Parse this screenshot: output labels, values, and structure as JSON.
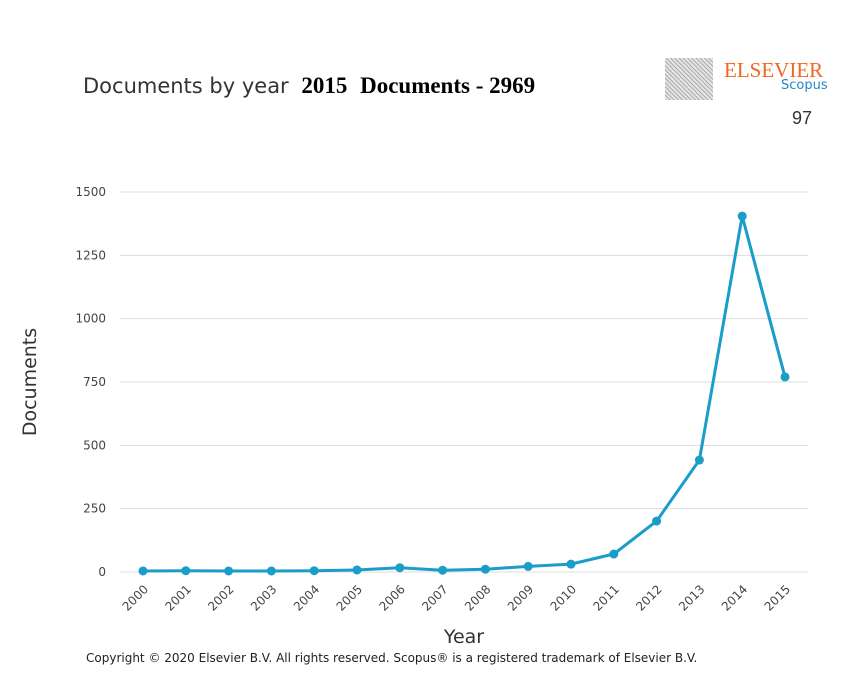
{
  "header": {
    "title": "Documents by year",
    "year": "2015",
    "docs_label": "Documents - 2969",
    "logo_text": "ELSEVIER",
    "logo_sub": "Scopus",
    "page_number": "97"
  },
  "footer": {
    "copyright": "Copyright © 2020 Elsevier B.V. All rights reserved. Scopus® is a registered trademark of Elsevier B.V."
  },
  "colors": {
    "line": "#1a9dc8",
    "grid": "#dddddd"
  },
  "chart_data": {
    "type": "line",
    "title": "Documents by year",
    "xlabel": "Year",
    "ylabel": "Documents",
    "ylim": [
      0,
      1500
    ],
    "yticks": [
      0,
      250,
      500,
      750,
      1000,
      1250,
      1500
    ],
    "x": [
      "2000",
      "2001",
      "2002",
      "2003",
      "2004",
      "2005",
      "2006",
      "2007",
      "2008",
      "2009",
      "2010",
      "2011",
      "2012",
      "2013",
      "2014",
      "2015"
    ],
    "series": [
      {
        "name": "Documents",
        "values": [
          4,
          5,
          4,
          4,
          5,
          8,
          17,
          7,
          11,
          22,
          31,
          71,
          201,
          442,
          1405,
          770
        ]
      }
    ],
    "grid": true
  }
}
